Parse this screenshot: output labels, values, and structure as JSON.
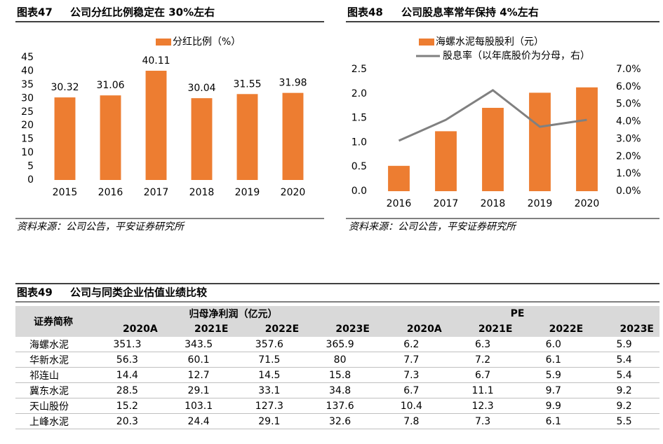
{
  "chart_data": [
    {
      "type": "bar",
      "label": "图表47",
      "title": "公司分红比例稳定在 30%左右",
      "categories": [
        "2015",
        "2016",
        "2017",
        "2018",
        "2019",
        "2020"
      ],
      "series": [
        {
          "name": "分红比例（%）",
          "color": "#ed7d31",
          "values": [
            30.32,
            31.06,
            40.11,
            30.04,
            31.55,
            31.98
          ]
        }
      ],
      "ylim": [
        0,
        45
      ],
      "yticks": [
        0,
        5,
        10,
        15,
        20,
        25,
        30,
        35,
        40,
        45
      ],
      "source": "资料来源：公司公告，平安证券研究所"
    },
    {
      "type": "combo",
      "label": "图表48",
      "title": "公司股息率常年保持 4%左右",
      "categories": [
        "2016",
        "2017",
        "2018",
        "2019",
        "2020"
      ],
      "series": [
        {
          "name": "海螺水泥每股股利（元）",
          "type": "bar",
          "color": "#ed7d31",
          "values": [
            0.52,
            1.23,
            1.71,
            2.02,
            2.13
          ]
        },
        {
          "name": "股息率（以年底股价为分母，右）",
          "type": "line",
          "axis": "y2",
          "color": "#808080",
          "values": [
            2.9,
            4.1,
            5.8,
            3.7,
            4.1
          ]
        }
      ],
      "ylim": [
        0,
        2.5
      ],
      "yticks": [
        {
          "value": 0,
          "label": "0.0"
        },
        0.5,
        {
          "value": 1,
          "label": "1.0"
        },
        1.5,
        {
          "value": 2,
          "label": "2.0"
        },
        2.5
      ],
      "y2lim": [
        0,
        7
      ],
      "y2ticks": [
        {
          "value": 0,
          "label": "0.0%"
        },
        {
          "value": 1,
          "label": "1.0%"
        },
        {
          "value": 2,
          "label": "2.0%"
        },
        {
          "value": 3,
          "label": "3.0%"
        },
        {
          "value": 4,
          "label": "4.0%"
        },
        {
          "value": 5,
          "label": "5.0%"
        },
        {
          "value": 6,
          "label": "6.0%"
        },
        {
          "value": 7,
          "label": "7.0%"
        }
      ],
      "source": "资料来源：公司公告，平安证券研究所"
    }
  ],
  "table": {
    "label": "图表49",
    "title": "公司与同类企业估值业绩比较",
    "name_header": "证券简称",
    "groups": [
      "归母净利润（亿元）",
      "PE"
    ],
    "sub": [
      "2020A",
      "2021E",
      "2022E",
      "2023E",
      "2020A",
      "2021E",
      "2022E",
      "2023E"
    ],
    "rows": [
      [
        "海螺水泥",
        "351.3",
        "343.5",
        "357.6",
        "365.9",
        "6.2",
        "6.3",
        "6.0",
        "5.9"
      ],
      [
        "华新水泥",
        "56.3",
        "60.1",
        "71.5",
        "80",
        "7.7",
        "7.2",
        "6.1",
        "5.4"
      ],
      [
        "祁连山",
        "14.4",
        "12.7",
        "14.5",
        "15.8",
        "7.3",
        "6.7",
        "5.9",
        "5.4"
      ],
      [
        "冀东水泥",
        "28.5",
        "29.1",
        "33.1",
        "34.8",
        "6.7",
        "11.1",
        "9.7",
        "9.2"
      ],
      [
        "天山股份",
        "15.2",
        "103.1",
        "127.3",
        "137.6",
        "10.4",
        "12.3",
        "9.9",
        "9.2"
      ],
      [
        "上峰水泥",
        "20.3",
        "24.4",
        "29.1",
        "32.6",
        "7.8",
        "7.3",
        "6.1",
        "5.5"
      ]
    ]
  }
}
